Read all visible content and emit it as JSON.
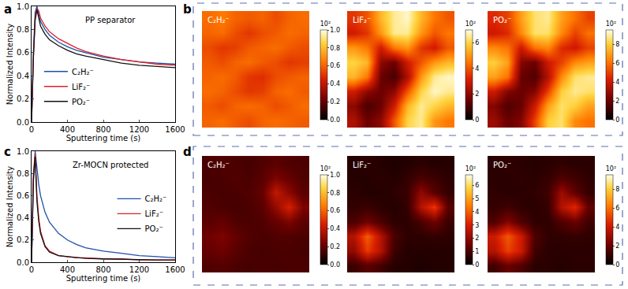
{
  "chart_data": [
    {
      "type": "line",
      "annotations": [
        "a"
      ],
      "title": "PP separator",
      "x_label": "Sputtering time (s)",
      "y_label": "Normalized Intensity",
      "x": [
        0,
        20,
        40,
        60,
        80,
        100,
        150,
        200,
        300,
        400,
        500,
        600,
        800,
        1000,
        1200,
        1400,
        1600
      ],
      "series": [
        {
          "name": "C₂H₂⁻",
          "color": "#1f4fa8",
          "values": [
            0,
            0.6,
            0.95,
            1.0,
            0.93,
            0.87,
            0.8,
            0.75,
            0.69,
            0.65,
            0.62,
            0.6,
            0.56,
            0.54,
            0.52,
            0.51,
            0.5
          ]
        },
        {
          "name": "LiF₂⁻",
          "color": "#e0202a",
          "values": [
            0,
            0.55,
            0.9,
            0.98,
            0.96,
            0.9,
            0.83,
            0.78,
            0.72,
            0.68,
            0.64,
            0.61,
            0.57,
            0.54,
            0.52,
            0.5,
            0.49
          ]
        },
        {
          "name": "PO₂⁻",
          "color": "#111111",
          "values": [
            0,
            0.55,
            0.88,
            0.97,
            0.9,
            0.83,
            0.76,
            0.71,
            0.66,
            0.62,
            0.59,
            0.57,
            0.54,
            0.51,
            0.49,
            0.48,
            0.47
          ]
        }
      ],
      "xlim": [
        0,
        1600
      ],
      "xticks": [
        0,
        400,
        800,
        1200,
        1600
      ],
      "ylim": [
        0,
        1.0
      ],
      "yticks": [
        {
          "value": 0,
          "label": "0.0"
        },
        {
          "value": 0.2,
          "label": "0.2"
        },
        {
          "value": 0.4,
          "label": "0.4"
        },
        {
          "value": 0.6,
          "label": "0.6"
        },
        {
          "value": 0.8,
          "label": "0.8"
        },
        {
          "value": 1.0,
          "label": "1.0"
        }
      ],
      "grid": false,
      "legend": "lower left"
    },
    {
      "type": "heatmap",
      "annotations": [
        "b"
      ],
      "title": "C₂H₂⁻",
      "colorbar_title": "10²",
      "tick_labels": false,
      "zlim": [
        0,
        1.0
      ],
      "zticks": [
        {
          "value": 0,
          "label": "0.0"
        },
        {
          "value": 0.2,
          "label": "0.2"
        },
        {
          "value": 0.4,
          "label": "0.4"
        },
        {
          "value": 0.6,
          "label": "0.6"
        },
        {
          "value": 0.8,
          "label": "0.8"
        },
        {
          "value": 1.0,
          "label": "1.0"
        }
      ],
      "z": [
        [
          0.62,
          0.65,
          0.6,
          0.58,
          0.6,
          0.55,
          0.6,
          0.62
        ],
        [
          0.6,
          0.62,
          0.55,
          0.5,
          0.55,
          0.58,
          0.62,
          0.6
        ],
        [
          0.55,
          0.5,
          0.52,
          0.58,
          0.6,
          0.62,
          0.58,
          0.55
        ],
        [
          0.58,
          0.55,
          0.6,
          0.62,
          0.58,
          0.55,
          0.5,
          0.52
        ],
        [
          0.6,
          0.62,
          0.58,
          0.5,
          0.48,
          0.55,
          0.58,
          0.6
        ],
        [
          0.62,
          0.6,
          0.55,
          0.5,
          0.52,
          0.6,
          0.62,
          0.58
        ],
        [
          0.58,
          0.55,
          0.6,
          0.62,
          0.6,
          0.55,
          0.58,
          0.62
        ],
        [
          0.6,
          0.62,
          0.58,
          0.55,
          0.6,
          0.62,
          0.6,
          0.58
        ]
      ]
    },
    {
      "type": "heatmap",
      "title": "LiF₂⁻",
      "colorbar_title": "10²",
      "tick_labels": false,
      "zlim": [
        0,
        7
      ],
      "zticks": [
        0,
        2,
        4,
        6
      ],
      "z": [
        [
          3.5,
          4.0,
          5.5,
          6.5,
          6.8,
          5.5,
          4.5,
          4.0
        ],
        [
          3.0,
          3.5,
          5.0,
          6.5,
          6.5,
          5.0,
          4.0,
          4.5
        ],
        [
          5.0,
          4.5,
          3.0,
          4.5,
          5.0,
          3.5,
          3.0,
          4.0
        ],
        [
          6.0,
          5.5,
          2.0,
          1.5,
          3.0,
          4.0,
          5.0,
          5.5
        ],
        [
          5.5,
          4.5,
          1.5,
          1.0,
          2.5,
          5.0,
          6.5,
          6.8
        ],
        [
          3.0,
          2.0,
          1.5,
          2.0,
          4.0,
          6.0,
          6.8,
          6.5
        ],
        [
          2.0,
          1.0,
          1.5,
          3.0,
          5.5,
          6.5,
          6.0,
          5.5
        ],
        [
          2.5,
          1.5,
          2.0,
          4.0,
          6.0,
          6.5,
          5.0,
          4.5
        ]
      ]
    },
    {
      "type": "heatmap",
      "title": "PO₂⁻",
      "colorbar_title": "10²",
      "tick_labels": false,
      "zlim": [
        0,
        9.5
      ],
      "zticks": [
        0,
        2,
        4,
        6,
        8
      ],
      "z": [
        [
          4.5,
          5.0,
          7.0,
          8.5,
          8.8,
          7.0,
          6.0,
          5.0
        ],
        [
          4.0,
          4.5,
          6.5,
          8.5,
          8.5,
          6.5,
          5.0,
          6.0
        ],
        [
          6.5,
          6.0,
          4.0,
          6.0,
          6.5,
          4.5,
          4.0,
          5.0
        ],
        [
          8.0,
          7.0,
          2.5,
          2.0,
          4.0,
          5.0,
          6.5,
          7.0
        ],
        [
          7.0,
          6.0,
          2.0,
          1.5,
          3.5,
          6.5,
          8.5,
          8.8
        ],
        [
          4.0,
          2.5,
          2.0,
          2.5,
          5.0,
          8.0,
          8.8,
          8.5
        ],
        [
          2.5,
          1.5,
          2.0,
          4.0,
          7.0,
          8.5,
          8.0,
          7.0
        ],
        [
          3.0,
          2.0,
          2.5,
          5.0,
          8.0,
          8.5,
          6.5,
          6.0
        ]
      ]
    },
    {
      "type": "line",
      "annotations": [
        "c"
      ],
      "title": "Zr-MOCN protected",
      "x_label": "Sputtering time (s)",
      "y_label": "Normalized Intensity",
      "x": [
        0,
        20,
        40,
        60,
        80,
        100,
        150,
        200,
        300,
        400,
        500,
        600,
        800,
        1000,
        1200,
        1400,
        1600
      ],
      "series": [
        {
          "name": "C₂H₂⁻",
          "color": "#1f4fa8",
          "values": [
            0,
            0.7,
            1.0,
            0.85,
            0.7,
            0.6,
            0.45,
            0.36,
            0.26,
            0.2,
            0.16,
            0.13,
            0.1,
            0.08,
            0.06,
            0.05,
            0.04
          ]
        },
        {
          "name": "LiF₂⁻",
          "color": "#e0202a",
          "values": [
            0,
            0.8,
            0.98,
            0.6,
            0.4,
            0.28,
            0.15,
            0.1,
            0.06,
            0.05,
            0.04,
            0.04,
            0.03,
            0.03,
            0.02,
            0.02,
            0.02
          ]
        },
        {
          "name": "PO₂⁻",
          "color": "#111111",
          "values": [
            0,
            0.75,
            0.95,
            0.55,
            0.37,
            0.26,
            0.14,
            0.09,
            0.06,
            0.05,
            0.04,
            0.035,
            0.03,
            0.025,
            0.02,
            0.02,
            0.02
          ]
        }
      ],
      "xlim": [
        0,
        1600
      ],
      "xticks": [
        0,
        400,
        800,
        1200,
        1600
      ],
      "ylim": [
        0,
        1.0
      ],
      "yticks": [
        {
          "value": 0,
          "label": "0.0"
        },
        {
          "value": 0.2,
          "label": "0.2"
        },
        {
          "value": 0.4,
          "label": "0.4"
        },
        {
          "value": 0.6,
          "label": "0.6"
        },
        {
          "value": 0.8,
          "label": "0.8"
        },
        {
          "value": 1.0,
          "label": "1.0"
        }
      ],
      "grid": false,
      "legend": "center right"
    },
    {
      "type": "heatmap",
      "annotations": [
        "d"
      ],
      "title": "C₂H₂⁻",
      "colorbar_title": "10²",
      "tick_labels": false,
      "zlim": [
        0,
        1.0
      ],
      "zticks": [
        {
          "value": 0,
          "label": "0.0"
        },
        {
          "value": 0.2,
          "label": "0.2"
        },
        {
          "value": 0.4,
          "label": "0.4"
        },
        {
          "value": 0.6,
          "label": "0.6"
        },
        {
          "value": 0.8,
          "label": "0.8"
        },
        {
          "value": 1.0,
          "label": "1.0"
        }
      ],
      "z": [
        [
          0.15,
          0.16,
          0.15,
          0.14,
          0.16,
          0.18,
          0.16,
          0.15
        ],
        [
          0.14,
          0.15,
          0.16,
          0.15,
          0.18,
          0.25,
          0.2,
          0.16
        ],
        [
          0.15,
          0.14,
          0.15,
          0.16,
          0.2,
          0.4,
          0.28,
          0.18
        ],
        [
          0.16,
          0.15,
          0.14,
          0.15,
          0.18,
          0.3,
          0.45,
          0.25
        ],
        [
          0.18,
          0.2,
          0.16,
          0.15,
          0.16,
          0.2,
          0.25,
          0.18
        ],
        [
          0.22,
          0.25,
          0.2,
          0.16,
          0.15,
          0.16,
          0.16,
          0.15
        ],
        [
          0.2,
          0.22,
          0.18,
          0.15,
          0.14,
          0.15,
          0.15,
          0.14
        ],
        [
          0.16,
          0.17,
          0.15,
          0.14,
          0.15,
          0.14,
          0.15,
          0.15
        ]
      ]
    },
    {
      "type": "heatmap",
      "title": "LiF₂⁻",
      "colorbar_title": "10²",
      "tick_labels": false,
      "zlim": [
        0,
        6.8
      ],
      "zticks": [
        0,
        1,
        2,
        3,
        4,
        5,
        6
      ],
      "z": [
        [
          0.5,
          0.6,
          0.5,
          0.4,
          0.5,
          0.6,
          0.5,
          0.5
        ],
        [
          0.5,
          0.5,
          0.6,
          0.5,
          0.7,
          1.0,
          0.8,
          0.6
        ],
        [
          0.6,
          0.5,
          0.5,
          0.6,
          0.8,
          2.0,
          1.2,
          0.7
        ],
        [
          0.7,
          0.8,
          0.6,
          0.5,
          0.7,
          2.5,
          3.5,
          1.2
        ],
        [
          1.0,
          1.5,
          1.0,
          0.6,
          0.6,
          1.0,
          1.5,
          0.8
        ],
        [
          2.5,
          4.0,
          2.5,
          1.0,
          0.6,
          0.6,
          0.7,
          0.6
        ],
        [
          2.0,
          3.5,
          2.5,
          0.8,
          0.5,
          0.5,
          0.5,
          0.5
        ],
        [
          0.8,
          1.2,
          0.9,
          0.5,
          0.5,
          0.4,
          0.5,
          0.5
        ]
      ]
    },
    {
      "type": "heatmap",
      "title": "PO₂⁻",
      "colorbar_title": "10²",
      "tick_labels": false,
      "zlim": [
        0,
        9.5
      ],
      "zticks": [
        0,
        2,
        4,
        6,
        8
      ],
      "z": [
        [
          0.8,
          0.9,
          0.8,
          0.7,
          0.8,
          0.9,
          0.8,
          0.8
        ],
        [
          0.8,
          0.8,
          0.9,
          0.8,
          1.0,
          1.5,
          1.2,
          0.9
        ],
        [
          0.9,
          0.8,
          0.8,
          0.9,
          1.2,
          3.0,
          1.8,
          1.0
        ],
        [
          1.0,
          1.2,
          0.9,
          0.8,
          1.0,
          3.5,
          4.5,
          1.8
        ],
        [
          1.5,
          2.5,
          1.5,
          0.9,
          0.9,
          1.5,
          2.0,
          1.2
        ],
        [
          4.0,
          5.5,
          4.0,
          1.5,
          0.9,
          0.9,
          1.0,
          0.9
        ],
        [
          3.5,
          5.0,
          4.0,
          1.2,
          0.8,
          0.8,
          0.8,
          0.8
        ],
        [
          1.2,
          2.0,
          1.5,
          0.8,
          0.8,
          0.7,
          0.8,
          0.8
        ]
      ]
    }
  ]
}
